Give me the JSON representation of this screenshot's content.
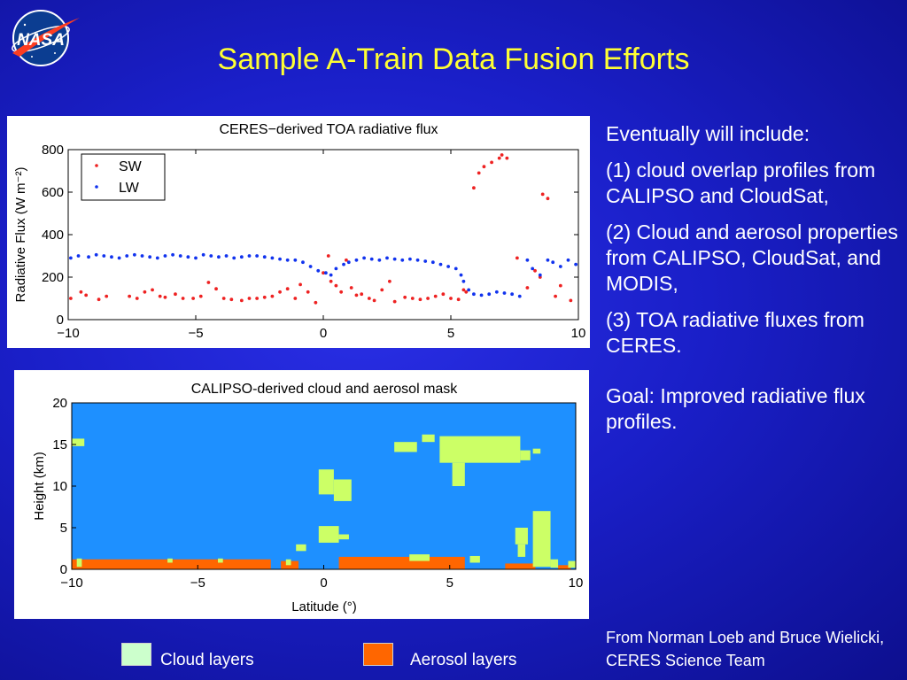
{
  "slide": {
    "title": "Sample A-Train Data Fusion Efforts",
    "logo_text": "NASA",
    "bullets": [
      "Eventually will include:",
      "(1) cloud overlap profiles from CALIPSO and CloudSat,",
      "(2) Cloud and aerosol properties from CALIPSO, CloudSat, and MODIS,",
      "(3) TOA radiative fluxes from CERES."
    ],
    "goal": "Goal: Improved radiative flux profiles.",
    "credit": "From Norman Loeb and Bruce Wielicki, CERES Science Team",
    "bottom_legend": [
      {
        "label": "Cloud layers",
        "color": "#ccffcc"
      },
      {
        "label": "Aerosol layers",
        "color": "#ff6600"
      }
    ]
  },
  "chart_data": [
    {
      "type": "scatter",
      "title": "CERES−derived TOA radiative flux",
      "ylabel": "Radiative Flux (W m⁻²)",
      "xlabel": "",
      "xlim": [
        -10,
        10
      ],
      "ylim": [
        0,
        800
      ],
      "xticks": [
        "−10",
        "−5",
        "0",
        "5",
        "10"
      ],
      "yticks": [
        "0",
        "200",
        "400",
        "600",
        "800"
      ],
      "legend_position": "top-left",
      "series": [
        {
          "name": "SW",
          "color": "#ee2222",
          "x": [
            -9.9,
            -9.5,
            -9.3,
            -8.8,
            -8.5,
            -7.6,
            -7.3,
            -7.0,
            -6.7,
            -6.4,
            -6.2,
            -5.8,
            -5.5,
            -5.1,
            -4.8,
            -4.5,
            -4.2,
            -3.9,
            -3.6,
            -3.2,
            -2.9,
            -2.6,
            -2.3,
            -2.0,
            -1.7,
            -1.4,
            -1.1,
            -0.9,
            -0.6,
            -0.3,
            0.0,
            0.2,
            0.3,
            0.5,
            0.7,
            0.9,
            1.1,
            1.3,
            1.5,
            1.8,
            2.0,
            2.3,
            2.6,
            2.8,
            3.2,
            3.5,
            3.8,
            4.1,
            4.4,
            4.7,
            5.0,
            5.3,
            5.5,
            5.6,
            5.9,
            6.1,
            6.3,
            6.6,
            6.9,
            7.0,
            7.2,
            7.6,
            8.0,
            8.3,
            8.5,
            8.6,
            8.8,
            9.1,
            9.3,
            9.7
          ],
          "y": [
            100,
            130,
            115,
            95,
            110,
            110,
            100,
            130,
            140,
            110,
            105,
            120,
            100,
            100,
            110,
            175,
            145,
            100,
            95,
            90,
            100,
            100,
            105,
            110,
            130,
            145,
            100,
            165,
            130,
            80,
            220,
            300,
            180,
            160,
            130,
            280,
            150,
            115,
            120,
            100,
            90,
            140,
            180,
            85,
            105,
            100,
            95,
            100,
            110,
            120,
            100,
            95,
            140,
            130,
            620,
            690,
            720,
            740,
            760,
            775,
            760,
            290,
            150,
            230,
            200,
            590,
            570,
            110,
            160,
            90
          ]
        },
        {
          "name": "LW",
          "color": "#1133ee",
          "x": [
            -9.9,
            -9.6,
            -9.2,
            -8.9,
            -8.6,
            -8.3,
            -8.0,
            -7.7,
            -7.4,
            -7.1,
            -6.8,
            -6.5,
            -6.2,
            -5.9,
            -5.6,
            -5.3,
            -5.0,
            -4.7,
            -4.4,
            -4.1,
            -3.8,
            -3.5,
            -3.2,
            -2.9,
            -2.6,
            -2.3,
            -2.0,
            -1.7,
            -1.4,
            -1.1,
            -0.8,
            -0.5,
            -0.2,
            0.1,
            0.3,
            0.5,
            0.8,
            1.0,
            1.3,
            1.6,
            1.9,
            2.2,
            2.5,
            2.8,
            3.1,
            3.4,
            3.7,
            4.0,
            4.3,
            4.6,
            4.9,
            5.2,
            5.4,
            5.5,
            5.7,
            5.9,
            6.2,
            6.5,
            6.8,
            7.1,
            7.4,
            7.7,
            8.0,
            8.2,
            8.5,
            8.8,
            9.0,
            9.3,
            9.6,
            9.9
          ],
          "y": [
            290,
            300,
            295,
            305,
            300,
            295,
            290,
            300,
            305,
            300,
            295,
            290,
            300,
            305,
            300,
            295,
            290,
            305,
            300,
            295,
            300,
            290,
            295,
            300,
            300,
            295,
            290,
            285,
            280,
            280,
            270,
            250,
            230,
            220,
            210,
            240,
            260,
            270,
            280,
            290,
            285,
            280,
            290,
            285,
            280,
            285,
            280,
            275,
            270,
            260,
            250,
            240,
            210,
            180,
            140,
            120,
            115,
            120,
            130,
            125,
            120,
            110,
            280,
            240,
            210,
            280,
            270,
            250,
            280,
            260
          ]
        }
      ]
    },
    {
      "type": "heatmap",
      "title": "CALIPSO-derived cloud and aerosol mask",
      "xlabel": "Latitude (°)",
      "ylabel": "Height (km)",
      "xlim": [
        -10,
        10
      ],
      "ylim": [
        0,
        20
      ],
      "xticks": [
        "−10",
        "−5",
        "0",
        "5",
        "10"
      ],
      "yticks": [
        "0",
        "5",
        "10",
        "15",
        "20"
      ],
      "background_color": "#1e90ff",
      "categories": [
        "Cloud layers",
        "Aerosol layers"
      ],
      "category_colors": [
        "#ccff66",
        "#ff6600"
      ],
      "cloud_regions": [
        {
          "x": [
            -10.0,
            -9.5
          ],
          "y": [
            14.8,
            15.7
          ]
        },
        {
          "x": [
            -9.8,
            -9.6
          ],
          "y": [
            0.3,
            1.3
          ]
        },
        {
          "x": [
            -6.2,
            -6.0
          ],
          "y": [
            0.8,
            1.3
          ]
        },
        {
          "x": [
            -4.2,
            -4.0
          ],
          "y": [
            0.8,
            1.3
          ]
        },
        {
          "x": [
            -1.5,
            -1.3
          ],
          "y": [
            0.5,
            1.2
          ]
        },
        {
          "x": [
            -0.2,
            0.4
          ],
          "y": [
            9.0,
            12.0
          ]
        },
        {
          "x": [
            0.4,
            1.1
          ],
          "y": [
            8.2,
            10.8
          ]
        },
        {
          "x": [
            -0.2,
            0.6
          ],
          "y": [
            3.2,
            5.2
          ]
        },
        {
          "x": [
            0.6,
            1.0
          ],
          "y": [
            3.6,
            4.2
          ]
        },
        {
          "x": [
            -1.1,
            -0.7
          ],
          "y": [
            2.2,
            3.0
          ]
        },
        {
          "x": [
            2.8,
            3.7
          ],
          "y": [
            14.1,
            15.3
          ]
        },
        {
          "x": [
            3.9,
            4.4
          ],
          "y": [
            15.3,
            16.2
          ]
        },
        {
          "x": [
            4.6,
            7.8
          ],
          "y": [
            12.8,
            16.0
          ]
        },
        {
          "x": [
            5.1,
            5.6
          ],
          "y": [
            10.0,
            12.8
          ]
        },
        {
          "x": [
            7.8,
            8.2
          ],
          "y": [
            13.1,
            14.3
          ]
        },
        {
          "x": [
            8.3,
            8.6
          ],
          "y": [
            13.9,
            14.5
          ]
        },
        {
          "x": [
            3.4,
            4.2
          ],
          "y": [
            1.0,
            1.8
          ]
        },
        {
          "x": [
            5.8,
            6.2
          ],
          "y": [
            0.8,
            1.6
          ]
        },
        {
          "x": [
            7.6,
            8.1
          ],
          "y": [
            3.0,
            5.0
          ]
        },
        {
          "x": [
            7.7,
            8.0
          ],
          "y": [
            1.5,
            3.0
          ]
        },
        {
          "x": [
            8.3,
            9.0
          ],
          "y": [
            0.3,
            7.0
          ]
        },
        {
          "x": [
            9.0,
            9.3
          ],
          "y": [
            0.2,
            1.2
          ]
        },
        {
          "x": [
            9.7,
            10.0
          ],
          "y": [
            0.2,
            1.0
          ]
        }
      ],
      "aerosol_regions": [
        {
          "x": [
            -10.0,
            -2.1
          ],
          "y": [
            0.0,
            1.2
          ]
        },
        {
          "x": [
            -1.7,
            -1.0
          ],
          "y": [
            0.0,
            1.0
          ]
        },
        {
          "x": [
            0.6,
            5.6
          ],
          "y": [
            0.0,
            1.5
          ]
        },
        {
          "x": [
            7.2,
            8.4
          ],
          "y": [
            0.0,
            0.7
          ]
        },
        {
          "x": [
            9.3,
            9.8
          ],
          "y": [
            0.0,
            0.5
          ]
        }
      ]
    }
  ]
}
